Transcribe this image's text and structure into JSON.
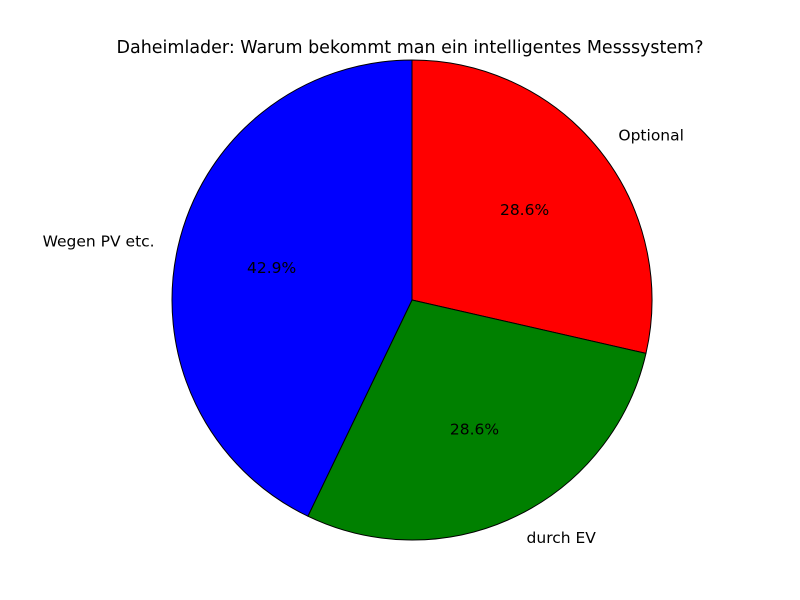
{
  "chart_data": {
    "type": "pie",
    "title": "Daheimlader: Warum bekommt man ein intelligentes Messsystem?",
    "slices": [
      {
        "label": "Optional",
        "value": 28.6,
        "pct_label": "28.6%",
        "color": "#ff0000"
      },
      {
        "label": "durch EV",
        "value": 28.6,
        "pct_label": "28.6%",
        "color": "#008000"
      },
      {
        "label": "Wegen PV etc.",
        "value": 42.9,
        "pct_label": "42.9%",
        "color": "#0000ff"
      }
    ],
    "start_angle_deg": 90,
    "direction": "clockwise",
    "legend": "none"
  }
}
